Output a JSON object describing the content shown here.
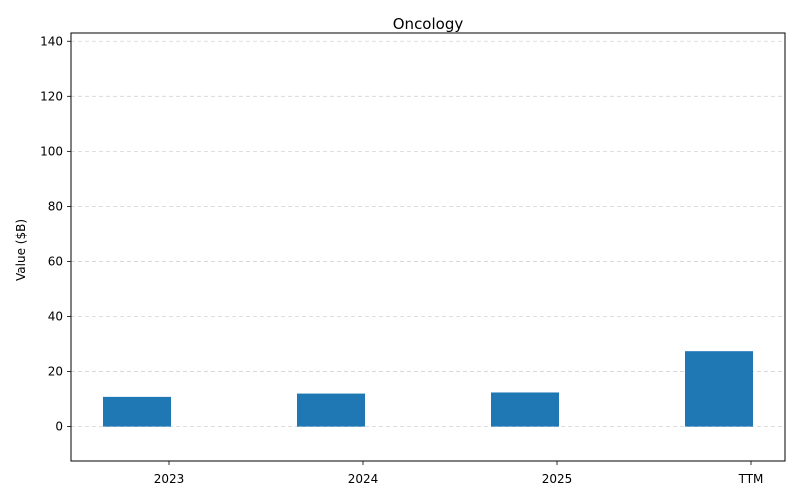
{
  "chart_data": {
    "type": "bar",
    "title": "Oncology",
    "xlabel": "",
    "ylabel": "Value ($B)",
    "categories": [
      "2023",
      "2024",
      "2025",
      "TTM"
    ],
    "values": [
      10.8,
      12.0,
      12.4,
      27.4
    ],
    "ylim": [
      -12.5,
      143
    ],
    "yticks": [
      0,
      20,
      40,
      60,
      80,
      100,
      120,
      140
    ],
    "grid": true,
    "bar_color": "#1f77b4"
  }
}
